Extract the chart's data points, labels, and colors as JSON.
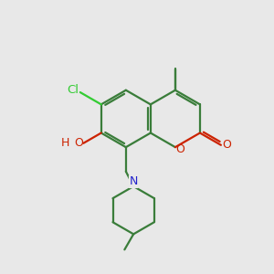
{
  "bg": "#e8e8e8",
  "bond_color": "#3a7d3a",
  "cl_color": "#33cc33",
  "o_color": "#cc2200",
  "n_color": "#2222cc",
  "lw": 1.6,
  "figsize": [
    3.0,
    3.0
  ],
  "dpi": 100,
  "xlim": [
    0,
    10
  ],
  "ylim": [
    0,
    10
  ]
}
